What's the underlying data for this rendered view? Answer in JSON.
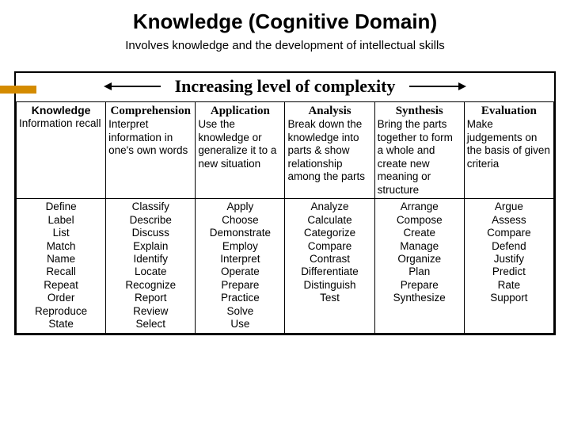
{
  "title": "Knowledge (Cognitive Domain)",
  "subtitle": "Involves knowledge and the development of intellectual skills",
  "complexity_label": "Increasing level of complexity",
  "colors": {
    "accent": "#d48b00",
    "border": "#000000",
    "text": "#000000",
    "background": "#ffffff"
  },
  "columns": [
    {
      "header": "Knowledge",
      "header_font": "sans",
      "desc": "Information recall",
      "verbs": [
        "Define",
        "Label",
        "List",
        "Match",
        "Name",
        "Recall",
        "Repeat",
        "Order",
        "Reproduce",
        "State"
      ]
    },
    {
      "header": "Comprehension",
      "header_font": "serif",
      "desc": "Interpret information in one's own words",
      "verbs": [
        "Classify",
        "Describe",
        "Discuss",
        "Explain",
        "Identify",
        "Locate",
        "Recognize",
        "Report",
        "Review",
        "Select"
      ]
    },
    {
      "header": "Application",
      "header_font": "serif",
      "desc": "Use the knowledge or generalize it to a new situation",
      "verbs": [
        "Apply",
        "Choose",
        "Demonstrate",
        "Employ",
        "Interpret",
        "Operate",
        "Prepare",
        "Practice",
        "Solve",
        "Use"
      ]
    },
    {
      "header": "Analysis",
      "header_font": "serif",
      "desc": "Break down the knowledge into parts & show relationship among the parts",
      "verbs": [
        "Analyze",
        "Calculate",
        "Categorize",
        "Compare",
        "Contrast",
        "Differentiate",
        "Distinguish",
        "Test"
      ]
    },
    {
      "header": "Synthesis",
      "header_font": "serif",
      "desc": "Bring the parts together to form a whole and create new meaning or structure",
      "verbs": [
        "Arrange",
        "Compose",
        "Create",
        "Manage",
        "Organize",
        "Plan",
        "Prepare",
        "Synthesize"
      ]
    },
    {
      "header": "Evaluation",
      "header_font": "serif",
      "desc": "Make judgements on the basis of given criteria",
      "verbs": [
        "Argue",
        "Assess",
        "Compare",
        "Defend",
        "Justify",
        "Predict",
        "Rate",
        "Support"
      ]
    }
  ]
}
